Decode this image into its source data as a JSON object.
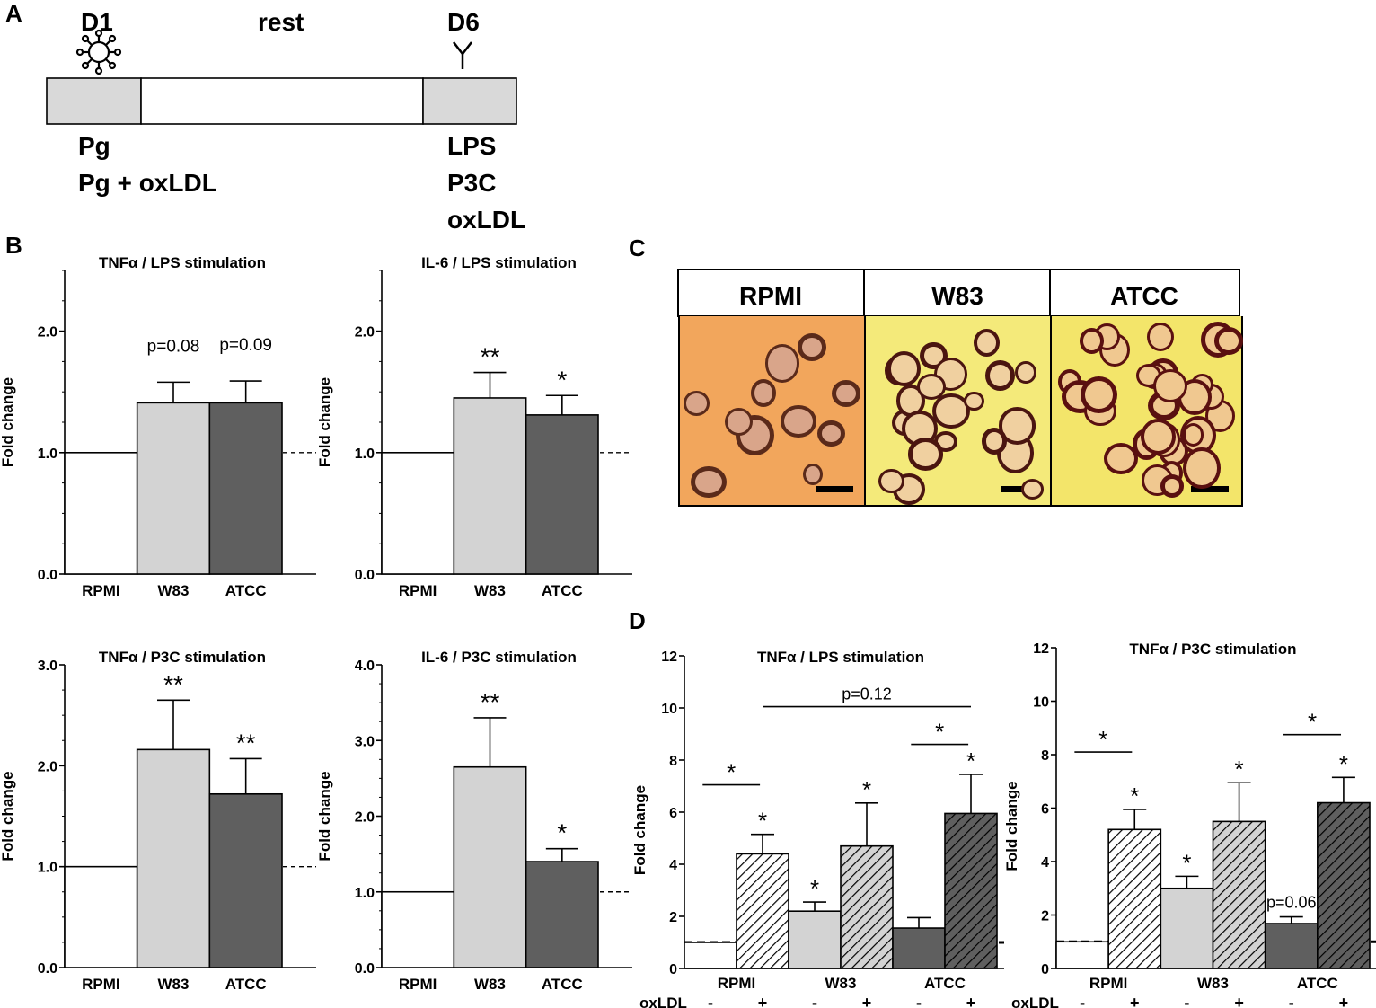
{
  "panel_labels": {
    "A": "A",
    "B": "B",
    "C": "C",
    "D": "D"
  },
  "panel_a": {
    "day1": "D1",
    "rest": "rest",
    "day6": "D6",
    "left_treatments": [
      "Pg",
      "Pg + oxLDL"
    ],
    "right_treatments": [
      "LPS",
      "P3C",
      "oxLDL"
    ],
    "icons": [
      "bacterium-icon",
      "antibody-icon"
    ]
  },
  "panel_c": {
    "headers": [
      "RPMI",
      "W83",
      "ATCC"
    ],
    "colors": {
      "RPMI": "#f2a65c",
      "W83": "#f4ea7a",
      "ATCC": "#f3e56a"
    }
  },
  "chart_data": [
    {
      "type": "bar",
      "panel": "B",
      "title": "TNFα / LPS stimulation",
      "ylabel": "Fold change",
      "categories": [
        "RPMI",
        "W83",
        "ATCC"
      ],
      "values": [
        1.0,
        1.41,
        1.41
      ],
      "errors": [
        0,
        0.17,
        0.18
      ],
      "ylim": [
        0,
        2.5
      ],
      "yticks": [
        0.0,
        1.0,
        2.0
      ],
      "ytick_labels": [
        "0.0",
        "1.0",
        "2.0"
      ],
      "reference_line": 1.0,
      "annotations": [
        "",
        "p=0.08",
        "p=0.09"
      ],
      "annotation_style": "pvalue"
    },
    {
      "type": "bar",
      "panel": "B",
      "title": "IL-6 / LPS stimulation",
      "ylabel": "Fold change",
      "categories": [
        "RPMI",
        "W83",
        "ATCC"
      ],
      "values": [
        1.0,
        1.45,
        1.31
      ],
      "errors": [
        0,
        0.21,
        0.16
      ],
      "ylim": [
        0,
        2.5
      ],
      "yticks": [
        0.0,
        1.0,
        2.0
      ],
      "ytick_labels": [
        "0.0",
        "1.0",
        "2.0"
      ],
      "reference_line": 1.0,
      "annotations": [
        "",
        "**",
        "*"
      ],
      "annotation_style": "star"
    },
    {
      "type": "bar",
      "panel": "B",
      "title": "TNFα / P3C stimulation",
      "ylabel": "Fold change",
      "categories": [
        "RPMI",
        "W83",
        "ATCC"
      ],
      "values": [
        1.0,
        2.16,
        1.72
      ],
      "errors": [
        0,
        0.49,
        0.35
      ],
      "ylim": [
        0,
        3.0
      ],
      "yticks": [
        0.0,
        1.0,
        2.0,
        3.0
      ],
      "ytick_labels": [
        "0.0",
        "1.0",
        "2.0",
        "3.0"
      ],
      "reference_line": 1.0,
      "annotations": [
        "",
        "**",
        "**"
      ],
      "annotation_style": "star"
    },
    {
      "type": "bar",
      "panel": "B",
      "title": "IL-6 / P3C stimulation",
      "ylabel": "Fold change",
      "categories": [
        "RPMI",
        "W83",
        "ATCC"
      ],
      "values": [
        1.0,
        2.65,
        1.4
      ],
      "errors": [
        0,
        0.65,
        0.17
      ],
      "ylim": [
        0,
        4.0
      ],
      "yticks": [
        0.0,
        1.0,
        2.0,
        3.0,
        4.0
      ],
      "ytick_labels": [
        "0.0",
        "1.0",
        "2.0",
        "3.0",
        "4.0"
      ],
      "reference_line": 1.0,
      "annotations": [
        "",
        "**",
        "*"
      ],
      "annotation_style": "star"
    },
    {
      "type": "bar",
      "panel": "D",
      "title": "TNFα / LPS stimulation",
      "ylabel": "Fold change",
      "categories": [
        "RPMI",
        "W83",
        "ATCC"
      ],
      "xsub_label": "oxLDL",
      "oxldl_signs": [
        "-",
        "+"
      ],
      "series": [
        {
          "name": "oxLDL -",
          "values": [
            1.0,
            2.2,
            1.55
          ],
          "errors": [
            0,
            0.35,
            0.4
          ],
          "annotations": [
            "",
            "*",
            ""
          ]
        },
        {
          "name": "oxLDL +",
          "values": [
            4.4,
            4.7,
            5.95
          ],
          "errors": [
            0.75,
            1.65,
            1.5
          ],
          "annotations": [
            "*",
            "*",
            "*"
          ]
        }
      ],
      "ylim": [
        0,
        12
      ],
      "yticks": [
        0,
        2,
        4,
        6,
        8,
        10,
        12
      ],
      "ytick_labels": [
        "0",
        "2",
        "4",
        "6",
        "8",
        "10",
        "12"
      ],
      "reference_line": 1.0,
      "group_brackets": [
        {
          "group": 0,
          "y": 7.05,
          "label": "*"
        },
        {
          "group": 2,
          "y": 8.6,
          "label": "*"
        }
      ],
      "long_bracket": {
        "y": 10.05,
        "label": "p=0.12"
      },
      "extra_annotations": []
    },
    {
      "type": "bar",
      "panel": "D",
      "title": "TNFα / P3C stimulation",
      "ylabel": "Fold change",
      "categories": [
        "RPMI",
        "W83",
        "ATCC"
      ],
      "xsub_label": "oxLDL",
      "oxldl_signs": [
        "-",
        "+"
      ],
      "series": [
        {
          "name": "oxLDL -",
          "values": [
            1.0,
            3.0,
            1.68
          ],
          "errors": [
            0,
            0.45,
            0.25
          ],
          "annotations": [
            "",
            "*",
            ""
          ]
        },
        {
          "name": "oxLDL +",
          "values": [
            5.2,
            5.5,
            6.2
          ],
          "errors": [
            0.75,
            1.45,
            0.95
          ],
          "annotations": [
            "*",
            "*",
            "*"
          ]
        }
      ],
      "ylim": [
        0,
        12
      ],
      "yticks": [
        0,
        2,
        4,
        6,
        8,
        10,
        12
      ],
      "ytick_labels": [
        "0",
        "2",
        "4",
        "6",
        "8",
        "10",
        "12"
      ],
      "reference_line": 1.0,
      "group_brackets": [
        {
          "group": 0,
          "y": 8.1,
          "label": "*"
        },
        {
          "group": 2,
          "y": 8.75,
          "label": "*"
        }
      ],
      "long_bracket": null,
      "extra_annotations": [
        {
          "group": 2,
          "series": 0,
          "label": "p=0.06"
        }
      ]
    }
  ]
}
